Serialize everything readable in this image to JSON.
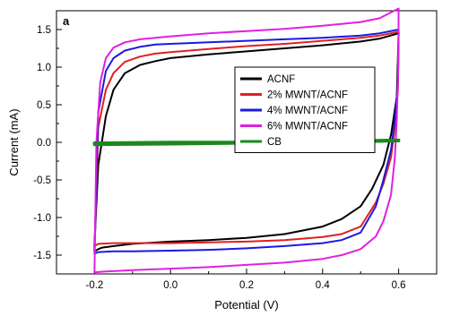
{
  "chart_data": {
    "type": "line",
    "panel_label": "a",
    "xlabel": "Potential (V)",
    "ylabel": "Current (mA)",
    "xlim": [
      -0.3,
      0.7
    ],
    "ylim": [
      -1.75,
      1.75
    ],
    "xticks": [
      -0.2,
      0.0,
      0.2,
      0.4,
      0.6
    ],
    "xtick_labels": [
      "-0.2",
      "0.0",
      "0.2",
      "0.4",
      "0.6"
    ],
    "yticks": [
      -1.5,
      -1.0,
      -0.5,
      0.0,
      0.5,
      1.0,
      1.5
    ],
    "ytick_labels": [
      "-1.5",
      "-1.0",
      "-0.5",
      "0.0",
      "0.5",
      "1.0",
      "1.5"
    ],
    "grid": false,
    "legend_position": "center-right",
    "series": [
      {
        "name": "ACNF",
        "color": "#000000",
        "x": [
          -0.2,
          -0.19,
          -0.17,
          -0.15,
          -0.12,
          -0.08,
          -0.04,
          0.0,
          0.1,
          0.2,
          0.3,
          0.4,
          0.5,
          0.55,
          0.6,
          0.6,
          0.595,
          0.58,
          0.56,
          0.53,
          0.5,
          0.45,
          0.4,
          0.3,
          0.2,
          0.1,
          0.0,
          -0.1,
          -0.15,
          -0.18,
          -0.19,
          -0.2,
          -0.2
        ],
        "y": [
          -1.35,
          -0.3,
          0.35,
          0.7,
          0.92,
          1.03,
          1.08,
          1.12,
          1.17,
          1.21,
          1.25,
          1.29,
          1.34,
          1.38,
          1.45,
          1.45,
          0.6,
          0.1,
          -0.3,
          -0.62,
          -0.85,
          -1.02,
          -1.12,
          -1.22,
          -1.27,
          -1.3,
          -1.32,
          -1.35,
          -1.38,
          -1.4,
          -1.42,
          -1.45,
          -1.35
        ]
      },
      {
        "name": "2% MWNT/ACNF",
        "color": "#e02020",
        "x": [
          -0.2,
          -0.19,
          -0.17,
          -0.15,
          -0.12,
          -0.08,
          -0.04,
          0.0,
          0.1,
          0.2,
          0.3,
          0.4,
          0.5,
          0.55,
          0.6,
          0.6,
          0.598,
          0.59,
          0.58,
          0.56,
          0.54,
          0.5,
          0.45,
          0.4,
          0.3,
          0.2,
          0.1,
          0.0,
          -0.1,
          -0.15,
          -0.19,
          -0.2,
          -0.2
        ],
        "y": [
          -1.4,
          0.2,
          0.7,
          0.92,
          1.07,
          1.14,
          1.18,
          1.2,
          1.24,
          1.28,
          1.31,
          1.35,
          1.39,
          1.42,
          1.47,
          1.47,
          0.7,
          0.2,
          -0.2,
          -0.55,
          -0.8,
          -1.12,
          -1.22,
          -1.26,
          -1.3,
          -1.32,
          -1.33,
          -1.34,
          -1.34,
          -1.34,
          -1.35,
          -1.38,
          -1.4
        ]
      },
      {
        "name": "4% MWNT/ACNF",
        "color": "#1a1ae0",
        "x": [
          -0.2,
          -0.19,
          -0.17,
          -0.15,
          -0.12,
          -0.08,
          -0.04,
          0.0,
          0.1,
          0.2,
          0.3,
          0.4,
          0.5,
          0.55,
          0.6,
          0.6,
          0.598,
          0.59,
          0.58,
          0.56,
          0.54,
          0.5,
          0.45,
          0.4,
          0.3,
          0.2,
          0.1,
          0.0,
          -0.1,
          -0.15,
          -0.19,
          -0.2,
          -0.2
        ],
        "y": [
          -1.45,
          0.4,
          0.95,
          1.12,
          1.22,
          1.27,
          1.3,
          1.31,
          1.33,
          1.35,
          1.37,
          1.39,
          1.42,
          1.45,
          1.5,
          1.5,
          0.8,
          0.3,
          -0.1,
          -0.5,
          -0.85,
          -1.2,
          -1.3,
          -1.34,
          -1.38,
          -1.41,
          -1.43,
          -1.44,
          -1.45,
          -1.45,
          -1.46,
          -1.48,
          -1.45
        ]
      },
      {
        "name": "6% MWNT/ACNF",
        "color": "#e020e0",
        "x": [
          -0.2,
          -0.195,
          -0.185,
          -0.17,
          -0.15,
          -0.12,
          -0.08,
          -0.04,
          0.0,
          0.1,
          0.2,
          0.3,
          0.4,
          0.5,
          0.55,
          0.6,
          0.6,
          0.599,
          0.595,
          0.59,
          0.58,
          0.56,
          0.54,
          0.5,
          0.45,
          0.4,
          0.3,
          0.2,
          0.1,
          0.0,
          -0.1,
          -0.18,
          -0.2,
          -0.2
        ],
        "y": [
          -1.72,
          0.0,
          0.8,
          1.12,
          1.26,
          1.33,
          1.37,
          1.39,
          1.41,
          1.45,
          1.48,
          1.51,
          1.55,
          1.6,
          1.65,
          1.78,
          1.78,
          1.0,
          0.3,
          -0.2,
          -0.7,
          -1.05,
          -1.25,
          -1.42,
          -1.5,
          -1.55,
          -1.6,
          -1.63,
          -1.66,
          -1.68,
          -1.7,
          -1.72,
          -1.73,
          -1.72
        ]
      },
      {
        "name": "CB",
        "color": "#1a8a1a",
        "x": [
          -0.2,
          0.0,
          0.2,
          0.4,
          0.6,
          0.6,
          0.4,
          0.2,
          0.0,
          -0.2,
          -0.2
        ],
        "y": [
          -0.01,
          0.0,
          0.0,
          0.01,
          0.03,
          0.02,
          0.0,
          -0.01,
          -0.02,
          -0.03,
          -0.01
        ]
      }
    ]
  }
}
